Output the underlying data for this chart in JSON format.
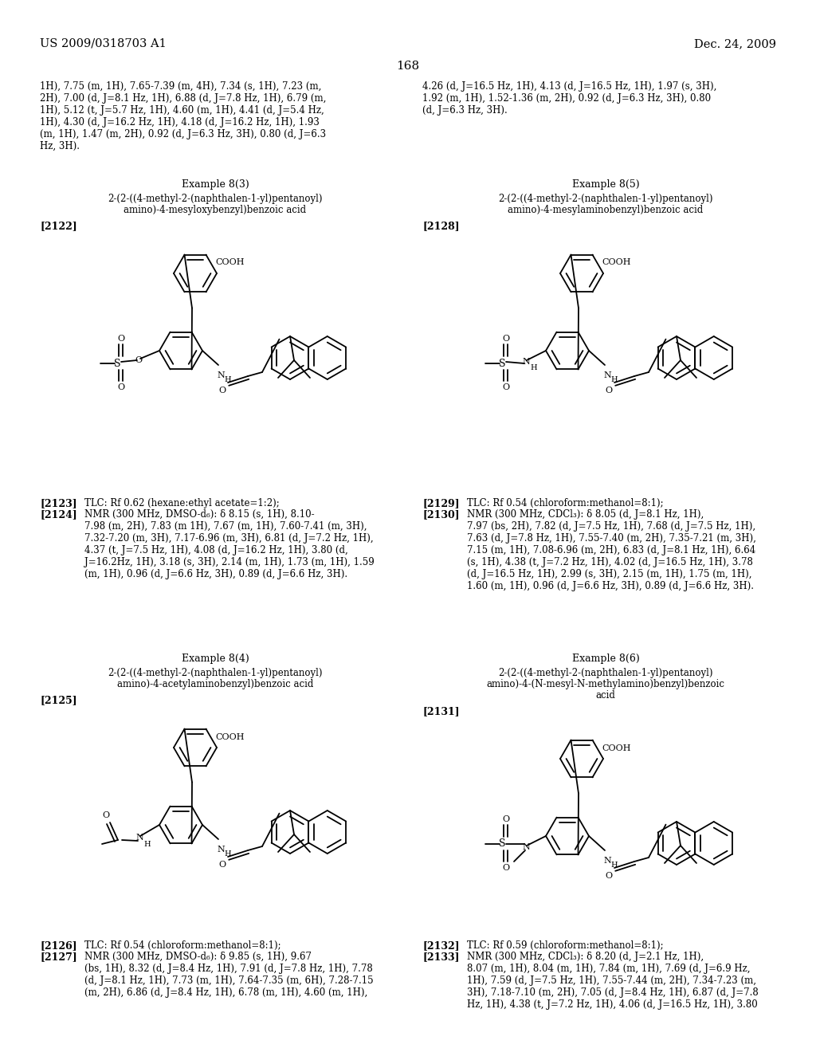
{
  "page_number": "168",
  "header_left": "US 2009/0318703 A1",
  "header_right": "Dec. 24, 2009",
  "background_color": "#ffffff",
  "top_text_left": "1H), 7.75 (m, 1H), 7.65-7.39 (m, 4H), 7.34 (s, 1H), 7.23 (m,\n2H), 7.00 (d, J=8.1 Hz, 1H), 6.88 (d, J=7.8 Hz, 1H), 6.79 (m,\n1H), 5.12 (t, J=5.7 Hz, 1H), 4.60 (m, 1H), 4.41 (d, J=5.4 Hz,\n1H), 4.30 (d, J=16.2 Hz, 1H), 4.18 (d, J=16.2 Hz, 1H), 1.93\n(m, 1H), 1.47 (m, 2H), 0.92 (d, J=6.3 Hz, 3H), 0.80 (d, J=6.3\nHz, 3H).",
  "top_text_right": "4.26 (d, J=16.5 Hz, 1H), 4.13 (d, J=16.5 Hz, 1H), 1.97 (s, 3H),\n1.92 (m, 1H), 1.52-1.36 (m, 2H), 0.92 (d, J=6.3 Hz, 3H), 0.80\n(d, J=6.3 Hz, 3H).",
  "ex83_header": "Example 8(3)",
  "ex83_title1": "2-(2-((4-methyl-2-(naphthalen-1-yl)pentanoyl)",
  "ex83_title2": "amino)-4-mesyloxybenzyl)benzoic acid",
  "ex84_header": "Example 8(4)",
  "ex84_title1": "2-(2-((4-methyl-2-(naphthalen-1-yl)pentanoyl)",
  "ex84_title2": "amino)-4-acetylaminobenzyl)benzoic acid",
  "ex85_header": "Example 8(5)",
  "ex85_title1": "2-(2-((4-methyl-2-(naphthalen-1-yl)pentanoyl)",
  "ex85_title2": "amino)-4-mesylaminobenzyl)benzoic acid",
  "ex86_header": "Example 8(6)",
  "ex86_title1": "2-(2-((4-methyl-2-(naphthalen-1-yl)pentanoyl)",
  "ex86_title2": "amino)-4-(N-mesyl-N-methylamino)benzyl)benzoic",
  "ex86_title3": "acid",
  "lbl2122": "[2122]",
  "lbl2123": "[2123]",
  "lbl2124": "[2124]",
  "lbl2125": "[2125]",
  "lbl2126": "[2126]",
  "lbl2127": "[2127]",
  "lbl2128": "[2128]",
  "lbl2129": "[2129]",
  "lbl2130": "[2130]",
  "lbl2131": "[2131]",
  "lbl2132": "[2132]",
  "lbl2133": "[2133]",
  "t2123": "TLC: Rf 0.62 (hexane:ethyl acetate=1:2);",
  "t2124": "NMR (300 MHz, DMSO-d₆): δ 8.15 (s, 1H), 8.10-\n7.98 (m, 2H), 7.83 (m 1H), 7.67 (m, 1H), 7.60-7.41 (m, 3H),\n7.32-7.20 (m, 3H), 7.17-6.96 (m, 3H), 6.81 (d, J=7.2 Hz, 1H),\n4.37 (t, J=7.5 Hz, 1H), 4.08 (d, J=16.2 Hz, 1H), 3.80 (d,\nJ=16.2Hz, 1H), 3.18 (s, 3H), 2.14 (m, 1H), 1.73 (m, 1H), 1.59\n(m, 1H), 0.96 (d, J=6.6 Hz, 3H), 0.89 (d, J=6.6 Hz, 3H).",
  "t2126": "TLC: Rf 0.54 (chloroform:methanol=8:1);",
  "t2127": "NMR (300 MHz, DMSO-d₆): δ 9.85 (s, 1H), 9.67\n(bs, 1H), 8.32 (d, J=8.4 Hz, 1H), 7.91 (d, J=7.8 Hz, 1H), 7.78\n(d, J=8.1 Hz, 1H), 7.73 (m, 1H), 7.64-7.35 (m, 6H), 7.28-7.15\n(m, 2H), 6.86 (d, J=8.4 Hz, 1H), 6.78 (m, 1H), 4.60 (m, 1H),",
  "t2129": "TLC: Rf 0.54 (chloroform:methanol=8:1);",
  "t2130": "NMR (300 MHz, CDCl₃): δ 8.05 (d, J=8.1 Hz, 1H),\n7.97 (bs, 2H), 7.82 (d, J=7.5 Hz, 1H), 7.68 (d, J=7.5 Hz, 1H),\n7.63 (d, J=7.8 Hz, 1H), 7.55-7.40 (m, 2H), 7.35-7.21 (m, 3H),\n7.15 (m, 1H), 7.08-6.96 (m, 2H), 6.83 (d, J=8.1 Hz, 1H), 6.64\n(s, 1H), 4.38 (t, J=7.2 Hz, 1H), 4.02 (d, J=16.5 Hz, 1H), 3.78\n(d, J=16.5 Hz, 1H), 2.99 (s, 3H), 2.15 (m, 1H), 1.75 (m, 1H),\n1.60 (m, 1H), 0.96 (d, J=6.6 Hz, 3H), 0.89 (d, J=6.6 Hz, 3H).",
  "t2132": "TLC: Rf 0.59 (chloroform:methanol=8:1);",
  "t2133": "NMR (300 MHz, CDCl₃): δ 8.20 (d, J=2.1 Hz, 1H),\n8.07 (m, 1H), 8.04 (m, 1H), 7.84 (m, 1H), 7.69 (d, J=6.9 Hz,\n1H), 7.59 (d, J=7.5 Hz, 1H), 7.55-7.44 (m, 2H), 7.34-7.23 (m,\n3H), 7.18-7.10 (m, 2H), 7.05 (d, J=8.4 Hz, 1H), 6.87 (d, J=7.8\nHz, 1H), 4.38 (t, J=7.2 Hz, 1H), 4.06 (d, J=16.5 Hz, 1H), 3.80"
}
